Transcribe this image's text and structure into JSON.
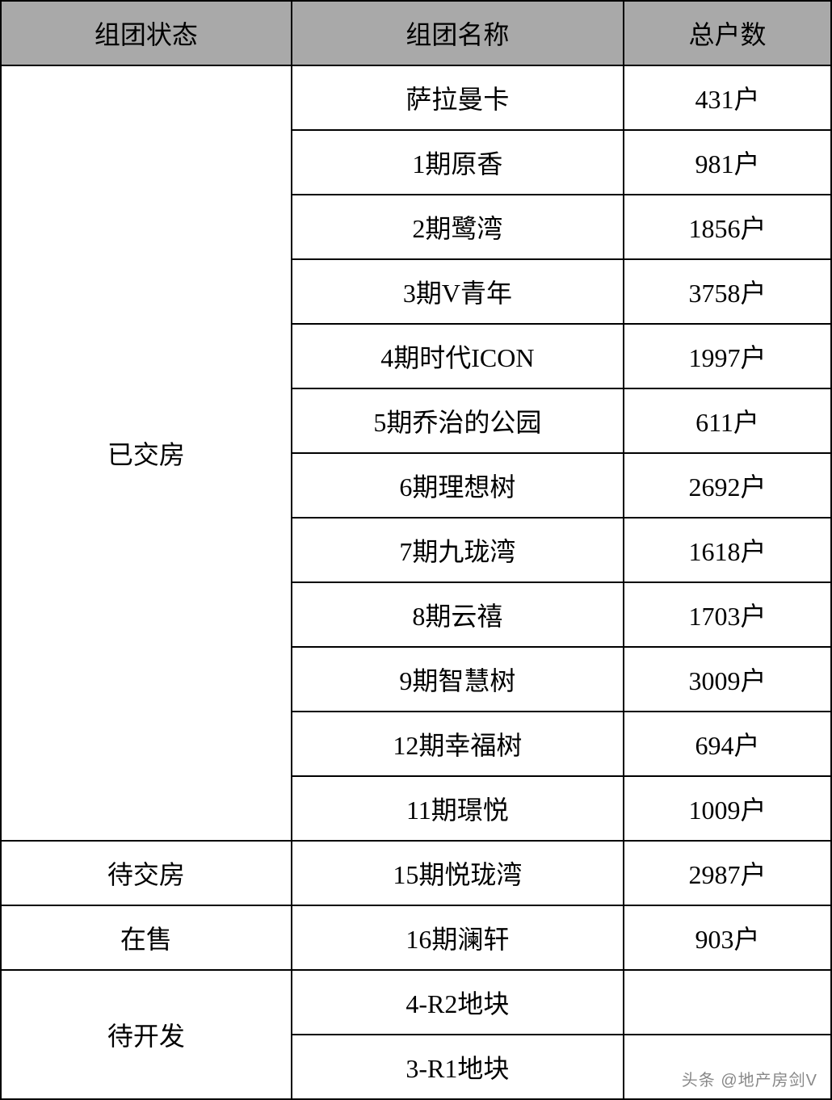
{
  "table": {
    "columns": [
      "组团状态",
      "组团名称",
      "总户数"
    ],
    "header_bg": "#a9a9a9",
    "border_color": "#000000",
    "font_size": 32,
    "groups": [
      {
        "status": "已交房",
        "rows": [
          {
            "name": "萨拉曼卡",
            "count": "431户"
          },
          {
            "name": "1期原香",
            "count": "981户"
          },
          {
            "name": "2期鹭湾",
            "count": "1856户"
          },
          {
            "name": "3期V青年",
            "count": "3758户"
          },
          {
            "name": "4期时代ICON",
            "count": "1997户"
          },
          {
            "name": "5期乔治的公园",
            "count": "611户"
          },
          {
            "name": "6期理想树",
            "count": "2692户"
          },
          {
            "name": "7期九珑湾",
            "count": "1618户"
          },
          {
            "name": "8期云禧",
            "count": "1703户"
          },
          {
            "name": "9期智慧树",
            "count": "3009户"
          },
          {
            "name": "12期幸福树",
            "count": "694户"
          },
          {
            "name": "11期璟悦",
            "count": "1009户"
          }
        ]
      },
      {
        "status": "待交房",
        "rows": [
          {
            "name": "15期悦珑湾",
            "count": "2987户"
          }
        ]
      },
      {
        "status": "在售",
        "rows": [
          {
            "name": "16期澜轩",
            "count": "903户"
          }
        ]
      },
      {
        "status": "待开发",
        "rows": [
          {
            "name": "4-R2地块",
            "count": ""
          },
          {
            "name": "3-R1地块",
            "count": ""
          }
        ]
      }
    ]
  },
  "watermark": "头条 @地产房剑V"
}
